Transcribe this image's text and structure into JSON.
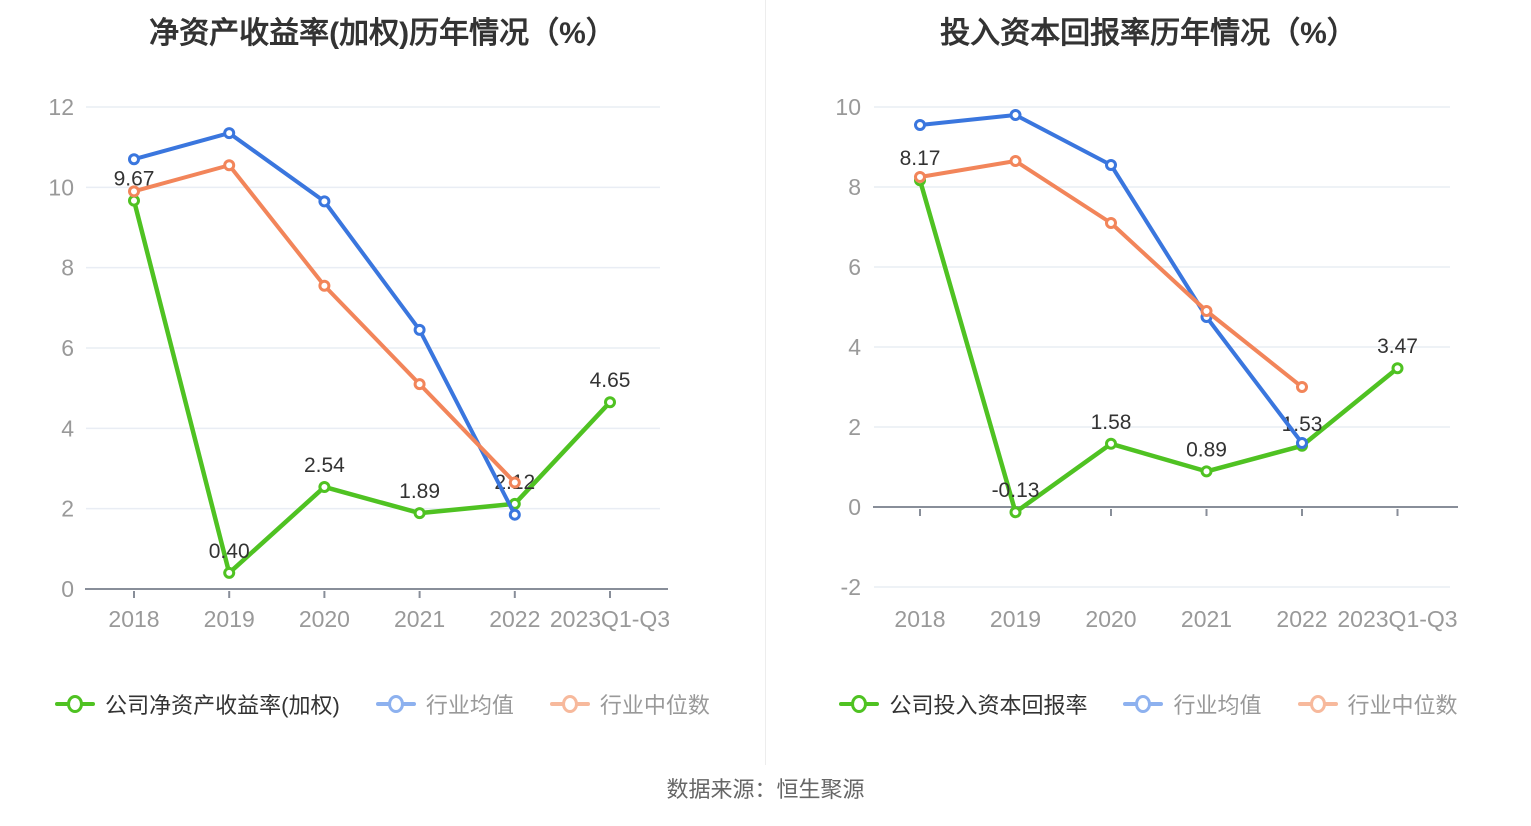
{
  "page": {
    "source_label": "数据来源：恒生聚源"
  },
  "axis_style": {
    "tick_label_color": "#999999",
    "axis_line_color": "#888e99",
    "grid_color": "#e9edf4"
  },
  "chart_data": [
    {
      "type": "line",
      "title": "净资产收益率(加权)历年情况（%）",
      "categories": [
        "2018",
        "2019",
        "2020",
        "2021",
        "2022",
        "2023Q1-Q3"
      ],
      "ylim": [
        0,
        12
      ],
      "yticks": [
        0,
        2,
        4,
        6,
        8,
        10,
        12
      ],
      "grid": true,
      "legend_position": "bottom",
      "series": [
        {
          "name": "公司净资产收益率(加权)",
          "color": "#4fc222",
          "legend_color": "#4fc222",
          "label_color": "#333333",
          "values": [
            9.67,
            0.4,
            2.54,
            1.89,
            2.12,
            4.65
          ],
          "point_labels": [
            "9.67",
            "0.40",
            "2.54",
            "1.89",
            "2.12",
            "4.65"
          ]
        },
        {
          "name": "行业均值",
          "color": "#3a76de",
          "legend_color": "#8db1ef",
          "label_color": "#999999",
          "values": [
            10.7,
            11.35,
            9.65,
            6.45,
            1.85,
            null
          ]
        },
        {
          "name": "行业中位数",
          "color": "#f2855a",
          "legend_color": "#f7b99c",
          "label_color": "#999999",
          "values": [
            9.9,
            10.55,
            7.55,
            5.1,
            2.65,
            null
          ]
        }
      ]
    },
    {
      "type": "line",
      "title": "投入资本回报率历年情况（%）",
      "categories": [
        "2018",
        "2019",
        "2020",
        "2021",
        "2022",
        "2023Q1-Q3"
      ],
      "ylim": [
        -2,
        10
      ],
      "yticks": [
        -2,
        0,
        2,
        4,
        6,
        8,
        10
      ],
      "grid": true,
      "legend_position": "bottom",
      "series": [
        {
          "name": "公司投入资本回报率",
          "color": "#4fc222",
          "legend_color": "#4fc222",
          "label_color": "#333333",
          "values": [
            8.17,
            -0.13,
            1.58,
            0.89,
            1.53,
            3.47
          ],
          "point_labels": [
            "8.17",
            "-0.13",
            "1.58",
            "0.89",
            "1.53",
            "3.47"
          ]
        },
        {
          "name": "行业均值",
          "color": "#3a76de",
          "legend_color": "#8db1ef",
          "label_color": "#999999",
          "values": [
            9.55,
            9.8,
            8.55,
            4.75,
            1.6,
            null
          ]
        },
        {
          "name": "行业中位数",
          "color": "#f2855a",
          "legend_color": "#f7b99c",
          "label_color": "#999999",
          "values": [
            8.25,
            8.65,
            7.1,
            4.9,
            3.0,
            null
          ]
        }
      ]
    }
  ]
}
